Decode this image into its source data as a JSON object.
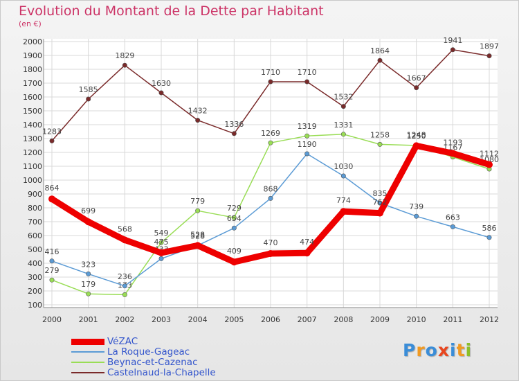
{
  "title": "Evolution du Montant de la Dette par Habitant",
  "subtitle": "(en €)",
  "logo": {
    "letters": [
      "P",
      "r",
      "o",
      "x",
      "i",
      "t",
      "i"
    ],
    "colors": [
      "#3a8dd8",
      "#f19a22",
      "#3a8dd8",
      "#e8461f",
      "#3a8dd8",
      "#f19a22",
      "#8cbf27"
    ]
  },
  "chart_data": {
    "type": "line",
    "categories": [
      "2000",
      "2001",
      "2002",
      "2003",
      "2004",
      "2005",
      "2006",
      "2007",
      "2008",
      "2009",
      "2010",
      "2011",
      "2012"
    ],
    "ylim": [
      100,
      2000
    ],
    "yticks": [
      100,
      200,
      300,
      400,
      500,
      600,
      700,
      800,
      900,
      1000,
      1100,
      1200,
      1300,
      1400,
      1500,
      1600,
      1700,
      1800,
      1900,
      2000
    ],
    "grid": true,
    "legend_position": "bottom-left",
    "series": [
      {
        "name": "VéZAC",
        "color": "#ee0000",
        "values": [
          864,
          699,
          568,
          475,
          528,
          409,
          470,
          474,
          774,
          762,
          1248,
          1193,
          1112
        ]
      },
      {
        "name": "La Roque-Gageac",
        "color": "#5b9bd5",
        "values": [
          416,
          323,
          236,
          433,
          528,
          654,
          868,
          1190,
          1030,
          835,
          739,
          663,
          586
        ]
      },
      {
        "name": "Beynac-et-Cazenac",
        "color": "#99dd55",
        "values": [
          279,
          179,
          173,
          549,
          779,
          729,
          1269,
          1319,
          1331,
          1258,
          1250,
          1167,
          1080
        ]
      },
      {
        "name": "Castelnaud-la-Chapelle",
        "color": "#7a2a2a",
        "values": [
          1283,
          1585,
          1829,
          1630,
          1432,
          1336,
          1710,
          1710,
          1532,
          1864,
          1667,
          1941,
          1897
        ]
      }
    ]
  }
}
